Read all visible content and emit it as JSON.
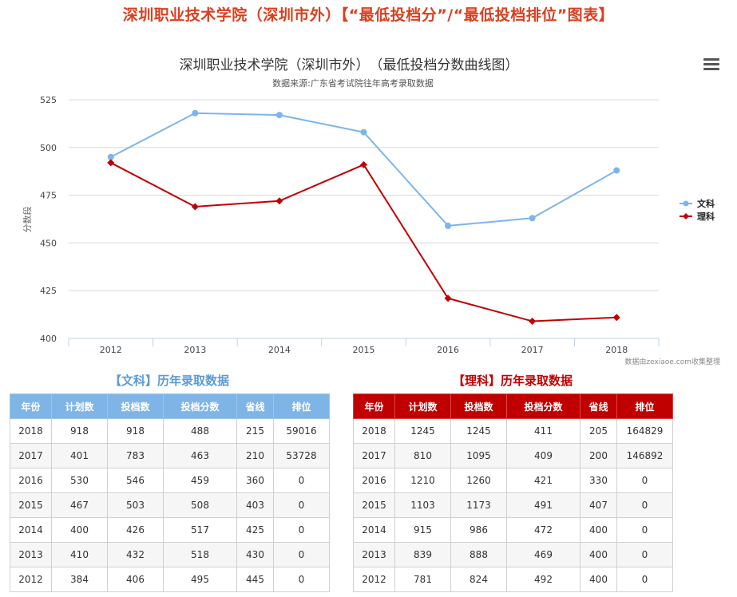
{
  "page": {
    "title": "深圳职业技术学院（深圳市外）【“最低投档分”/“最低投档排位”图表】"
  },
  "chart_data": {
    "type": "line",
    "title": "深圳职业技术学院（深圳市外）　（最低投档分数曲线图）",
    "subtitle": "数据来源:广东省考试院往年高考录取数据",
    "ylabel": "分数段",
    "xlabel": "",
    "categories": [
      "2012",
      "2013",
      "2014",
      "2015",
      "2016",
      "2017",
      "2018"
    ],
    "yticks": [
      "525",
      "500",
      "475",
      "450",
      "425",
      "400"
    ],
    "ylim": [
      400,
      525
    ],
    "grid": true,
    "legend_position": "right",
    "series": [
      {
        "name": "文科",
        "color": "#7cb5ec",
        "marker": "circle",
        "values": [
          495,
          518,
          517,
          508,
          459,
          463,
          488
        ]
      },
      {
        "name": "理科",
        "color": "#c00000",
        "marker": "diamond",
        "values": [
          492,
          469,
          472,
          491,
          421,
          409,
          411
        ]
      }
    ],
    "credits": "数据由zexiaoe.com收集整理"
  },
  "tables": {
    "headers": [
      "年份",
      "计划数",
      "投档数",
      "投档分数",
      "省线",
      "排位"
    ],
    "arts": {
      "title": "【文科】历年录取数据",
      "rows": [
        [
          "2018",
          "918",
          "918",
          "488",
          "215",
          "59016"
        ],
        [
          "2017",
          "401",
          "783",
          "463",
          "210",
          "53728"
        ],
        [
          "2016",
          "530",
          "546",
          "459",
          "360",
          "0"
        ],
        [
          "2015",
          "467",
          "503",
          "508",
          "403",
          "0"
        ],
        [
          "2014",
          "400",
          "426",
          "517",
          "425",
          "0"
        ],
        [
          "2013",
          "410",
          "432",
          "518",
          "430",
          "0"
        ],
        [
          "2012",
          "384",
          "406",
          "495",
          "445",
          "0"
        ]
      ]
    },
    "science": {
      "title": "【理科】历年录取数据",
      "rows": [
        [
          "2018",
          "1245",
          "1245",
          "411",
          "205",
          "164829"
        ],
        [
          "2017",
          "810",
          "1095",
          "409",
          "200",
          "146892"
        ],
        [
          "2016",
          "1210",
          "1260",
          "421",
          "330",
          "0"
        ],
        [
          "2015",
          "1103",
          "1173",
          "491",
          "407",
          "0"
        ],
        [
          "2014",
          "915",
          "986",
          "472",
          "400",
          "0"
        ],
        [
          "2013",
          "839",
          "888",
          "469",
          "400",
          "0"
        ],
        [
          "2012",
          "781",
          "824",
          "492",
          "400",
          "0"
        ]
      ]
    }
  },
  "icons": {
    "menu": "hamburger-menu-icon"
  }
}
